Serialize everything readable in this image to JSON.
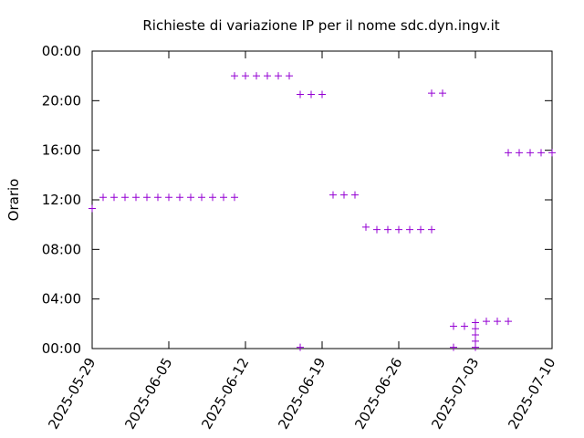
{
  "chart_data": {
    "type": "scatter",
    "title": "Richieste di variazione IP per il nome sdc.dyn.ingv.it",
    "y_label": "Orario",
    "series": [
      {
        "color": "#9400d3",
        "x": [
          "2025-05-29",
          "2025-05-30",
          "2025-05-31",
          "2025-06-01",
          "2025-06-02",
          "2025-06-03",
          "2025-06-04",
          "2025-06-05",
          "2025-06-06",
          "2025-06-07",
          "2025-06-08",
          "2025-06-09",
          "2025-06-10",
          "2025-06-11",
          "2025-06-11",
          "2025-06-12",
          "2025-06-13",
          "2025-06-14",
          "2025-06-15",
          "2025-06-16",
          "2025-06-17",
          "2025-06-17",
          "2025-06-18",
          "2025-06-19",
          "2025-06-20",
          "2025-06-21",
          "2025-06-22",
          "2025-06-23",
          "2025-06-24",
          "2025-06-25",
          "2025-06-26",
          "2025-06-27",
          "2025-06-28",
          "2025-06-29",
          "2025-06-29",
          "2025-06-30",
          "2025-07-01",
          "2025-07-01",
          "2025-07-02",
          "2025-07-03",
          "2025-07-03",
          "2025-07-03",
          "2025-07-03",
          "2025-07-03",
          "2025-07-04",
          "2025-07-05",
          "2025-07-06",
          "2025-07-06",
          "2025-07-07",
          "2025-07-08",
          "2025-07-09",
          "2025-07-10"
        ],
        "values": [
          11.3,
          12.2,
          12.2,
          12.2,
          12.2,
          12.2,
          12.2,
          12.2,
          12.2,
          12.2,
          12.2,
          12.2,
          12.2,
          12.2,
          22.0,
          22.0,
          22.0,
          22.0,
          22.0,
          22.0,
          20.5,
          0.1,
          20.5,
          20.5,
          12.4,
          12.4,
          12.4,
          9.8,
          9.6,
          9.6,
          9.6,
          9.6,
          9.6,
          9.6,
          20.6,
          20.6,
          1.8,
          0.1,
          1.8,
          2.1,
          1.6,
          1.1,
          0.6,
          0.1,
          2.2,
          2.2,
          2.2,
          15.8,
          15.8,
          15.8,
          15.8,
          15.8
        ]
      }
    ],
    "xlim": [
      "2025-05-29",
      "2025-07-10"
    ],
    "xticks": [
      "2025-05-29",
      "2025-06-05",
      "2025-06-12",
      "2025-06-19",
      "2025-06-26",
      "2025-07-03",
      "2025-07-10"
    ],
    "ylim": [
      0,
      24
    ],
    "yticks": [
      {
        "value": 0,
        "label": "00:00"
      },
      {
        "value": 4,
        "label": "04:00"
      },
      {
        "value": 8,
        "label": "08:00"
      },
      {
        "value": 12,
        "label": "12:00"
      },
      {
        "value": 16,
        "label": "16:00"
      },
      {
        "value": 20,
        "label": "20:00"
      },
      {
        "value": 24,
        "label": "00:00"
      }
    ]
  }
}
